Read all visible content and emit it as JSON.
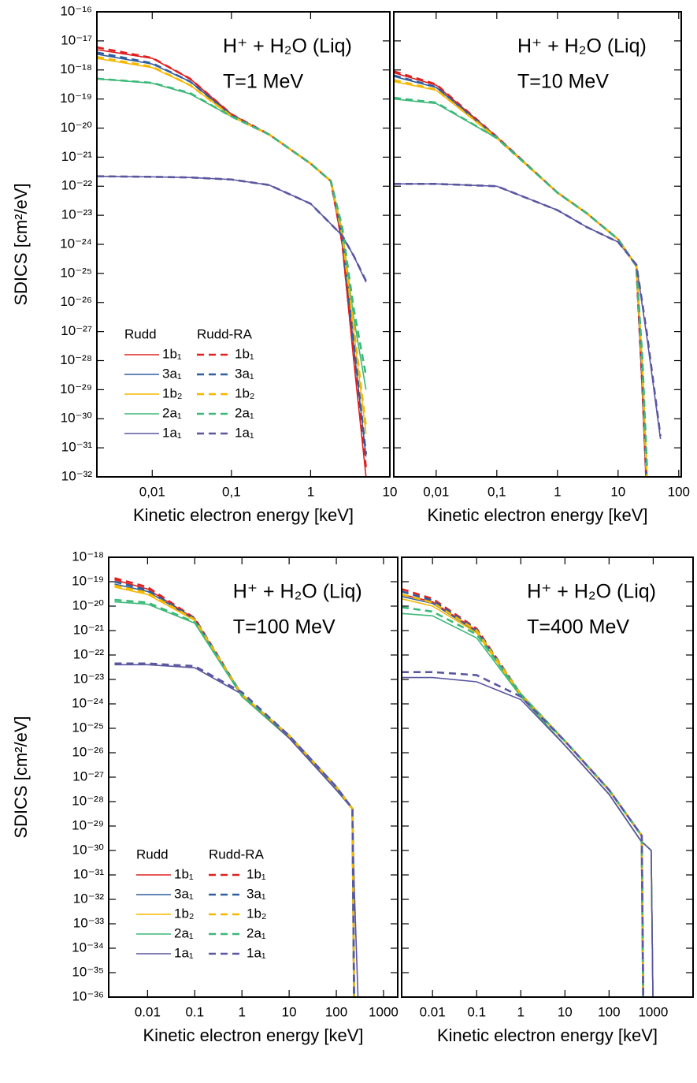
{
  "chart_data": [
    {
      "type": "line",
      "annotations": [
        "H⁺ + H₂O (Liq)",
        "T=1 MeV"
      ],
      "xlabel": "Kinetic electron energy [keV]",
      "ylabel": "SDICS [cm²/eV]",
      "xscale": "log",
      "yscale": "log",
      "xlim": [
        0.002,
        10
      ],
      "ylim": [
        1e-32,
        1e-16
      ],
      "xticks": [
        {
          "value": 0.01,
          "label": "0,01"
        },
        {
          "value": 0.1,
          "label": "0,1"
        },
        1,
        10
      ],
      "yticks": [
        {
          "value": 1e-16,
          "label": "10⁻¹⁶"
        },
        {
          "value": 1e-17,
          "label": "10⁻¹⁷"
        },
        {
          "value": 1e-18,
          "label": "10⁻¹⁸"
        },
        {
          "value": 1e-19,
          "label": "10⁻¹⁹"
        },
        {
          "value": 1e-20,
          "label": "10⁻²⁰"
        },
        {
          "value": 1e-21,
          "label": "10⁻²¹"
        },
        {
          "value": 1e-22,
          "label": "10⁻²²"
        },
        {
          "value": 1e-23,
          "label": "10⁻²³"
        },
        {
          "value": 1e-24,
          "label": "10⁻²⁴"
        },
        {
          "value": 1e-25,
          "label": "10⁻²⁵"
        },
        {
          "value": 1e-26,
          "label": "10⁻²⁶"
        },
        {
          "value": 1e-27,
          "label": "10⁻²⁷"
        },
        {
          "value": 1e-28,
          "label": "10⁻²⁸"
        },
        {
          "value": 1e-29,
          "label": "10⁻²⁹"
        },
        {
          "value": 1e-30,
          "label": "10⁻³⁰"
        },
        {
          "value": 1e-31,
          "label": "10⁻³¹"
        },
        {
          "value": 1e-32,
          "label": "10⁻³²"
        }
      ],
      "legend": "lower left",
      "legend_titles": [
        "Rudd",
        "Rudd-RA"
      ],
      "x": [
        0.002,
        0.01,
        0.03,
        0.1,
        0.3,
        1,
        1.8,
        2.5,
        3.5,
        5
      ],
      "series": [
        {
          "name": "1b₁",
          "style": "solid",
          "color": "#e02020",
          "values": [
            5e-18,
            2.5e-18,
            5e-19,
            3e-20,
            6e-21,
            6e-22,
            1.5e-22,
            1e-24,
            1e-28,
            1e-32
          ]
        },
        {
          "name": "3a₁",
          "style": "solid",
          "color": "#2f5f9e",
          "values": [
            3.5e-18,
            1.6e-18,
            4e-19,
            2.8e-20,
            6e-21,
            6e-22,
            1.5e-22,
            1.5e-24,
            3e-28,
            5e-32
          ]
        },
        {
          "name": "1b₂",
          "style": "solid",
          "color": "#f5b800",
          "values": [
            2.5e-18,
            1.2e-18,
            3e-19,
            2.6e-20,
            6e-21,
            6e-22,
            1.5e-22,
            2e-24,
            1e-27,
            3e-31
          ]
        },
        {
          "name": "2a₁",
          "style": "solid",
          "color": "#3cb878",
          "values": [
            5e-19,
            3.5e-19,
            1.5e-19,
            2.5e-20,
            6e-21,
            6e-22,
            1.5e-22,
            3e-24,
            3e-27,
            1e-29
          ]
        },
        {
          "name": "1a₁",
          "style": "solid",
          "color": "#5a56a0",
          "values": [
            2.2e-22,
            2.1e-22,
            2e-22,
            1.7e-22,
            1.1e-22,
            2.5e-23,
            5e-24,
            2e-24,
            4e-25,
            5e-26
          ]
        },
        {
          "name": "1b₁",
          "style": "dashed",
          "color": "#e02020",
          "values": [
            6e-18,
            2.6e-18,
            5e-19,
            3e-20,
            6e-21,
            6e-22,
            1.5e-22,
            1.2e-24,
            1.5e-28,
            2e-32
          ]
        },
        {
          "name": "3a₁",
          "style": "dashed",
          "color": "#2f5f9e",
          "values": [
            4e-18,
            1.7e-18,
            4e-19,
            2.8e-20,
            6e-21,
            6e-22,
            1.5e-22,
            1.7e-24,
            4e-28,
            6e-32
          ]
        },
        {
          "name": "1b₂",
          "style": "dashed",
          "color": "#f5b800",
          "values": [
            2.8e-18,
            1.3e-18,
            3e-19,
            2.6e-20,
            6e-21,
            6e-22,
            1.5e-22,
            2.2e-24,
            1.5e-27,
            5e-31
          ]
        },
        {
          "name": "2a₁",
          "style": "dashed",
          "color": "#3cb878",
          "values": [
            5e-19,
            3.6e-19,
            1.6e-19,
            2.5e-20,
            6e-21,
            6e-22,
            1.5e-22,
            4e-24,
            6e-27,
            3e-29
          ]
        },
        {
          "name": "1a₁",
          "style": "dashed",
          "color": "#5a56a0",
          "values": [
            2.2e-22,
            2.1e-22,
            2e-22,
            1.7e-22,
            1.1e-22,
            2.5e-23,
            5e-24,
            2e-24,
            4e-25,
            5.5e-26
          ]
        }
      ]
    },
    {
      "type": "line",
      "annotations": [
        "H⁺ + H₂O (Liq)",
        "T=10 MeV"
      ],
      "xlabel": "Kinetic electron energy [keV]",
      "xscale": "log",
      "yscale": "log",
      "xlim": [
        0.002,
        110
      ],
      "ylim": [
        1e-32,
        1e-16
      ],
      "xticks": [
        {
          "value": 0.01,
          "label": "0,01"
        },
        {
          "value": 0.1,
          "label": "0,1"
        },
        1,
        10,
        100
      ],
      "yticks": [
        1e-16,
        1e-17,
        1e-18,
        1e-19,
        1e-20,
        1e-21,
        1e-22,
        1e-23,
        1e-24,
        1e-25,
        1e-26,
        1e-27,
        1e-28,
        1e-29,
        1e-30,
        1e-31,
        1e-32
      ],
      "ytick_labels": false,
      "x": [
        0.002,
        0.01,
        0.1,
        1,
        3,
        10,
        20,
        25,
        30,
        50
      ],
      "series": [
        {
          "style": "solid",
          "color": "#e02020",
          "values": [
            8e-19,
            3e-19,
            5e-21,
            6e-23,
            1.2e-23,
            1.5e-24,
            1.8e-25,
            1e-29,
            1e-33,
            null
          ]
        },
        {
          "style": "solid",
          "color": "#2f5f9e",
          "values": [
            6e-19,
            2.5e-19,
            4.8e-21,
            6e-23,
            1.2e-23,
            1.5e-24,
            1.8e-25,
            2e-29,
            2e-33,
            null
          ]
        },
        {
          "style": "solid",
          "color": "#f5b800",
          "values": [
            4e-19,
            2e-19,
            4.6e-21,
            6e-23,
            1.2e-23,
            1.5e-24,
            1.8e-25,
            5e-29,
            5e-33,
            null
          ]
        },
        {
          "style": "solid",
          "color": "#3cb878",
          "values": [
            1e-19,
            7e-20,
            4.5e-21,
            6e-23,
            1.2e-23,
            1.5e-24,
            1.8e-25,
            1e-28,
            1e-32,
            null
          ]
        },
        {
          "style": "solid",
          "color": "#5a56a0",
          "values": [
            1.2e-22,
            1.2e-22,
            1e-22,
            1.5e-23,
            4e-24,
            1.2e-24,
            2e-25,
            8e-27,
            6e-28,
            2e-31
          ]
        },
        {
          "style": "dashed",
          "color": "#e02020",
          "values": [
            9e-19,
            3.2e-19,
            5e-21,
            6e-23,
            1.2e-23,
            1.5e-24,
            1.8e-25,
            1.5e-29,
            2e-33,
            null
          ]
        },
        {
          "style": "dashed",
          "color": "#2f5f9e",
          "values": [
            6.5e-19,
            2.6e-19,
            4.8e-21,
            6e-23,
            1.2e-23,
            1.5e-24,
            1.8e-25,
            3e-29,
            3e-33,
            null
          ]
        },
        {
          "style": "dashed",
          "color": "#f5b800",
          "values": [
            4.5e-19,
            2.1e-19,
            4.6e-21,
            6e-23,
            1.2e-23,
            1.5e-24,
            1.8e-25,
            6e-29,
            6e-33,
            null
          ]
        },
        {
          "style": "dashed",
          "color": "#3cb878",
          "values": [
            1.1e-19,
            7.5e-20,
            4.5e-21,
            6e-23,
            1.2e-23,
            1.5e-24,
            1.8e-25,
            1.5e-28,
            2e-32,
            null
          ]
        },
        {
          "style": "dashed",
          "color": "#5a56a0",
          "values": [
            1.2e-22,
            1.2e-22,
            1e-22,
            1.5e-23,
            4e-24,
            1.2e-24,
            2e-25,
            1e-26,
            8e-28,
            2.5e-31
          ]
        }
      ]
    },
    {
      "type": "line",
      "annotations": [
        "H⁺ + H₂O (Liq)",
        "T=100 MeV"
      ],
      "xlabel": "Kinetic electron energy [keV]",
      "ylabel": "SDICS [cm²/eV]",
      "xscale": "log",
      "yscale": "log",
      "xlim": [
        0.0015,
        2000
      ],
      "ylim": [
        1e-36,
        1e-18
      ],
      "xticks": [
        0.01,
        0.1,
        1,
        10,
        100,
        1000
      ],
      "yticks": [
        {
          "value": 1e-18,
          "label": "10⁻¹⁸"
        },
        {
          "value": 1e-19,
          "label": "10⁻¹⁹"
        },
        {
          "value": 1e-20,
          "label": "10⁻²⁰"
        },
        {
          "value": 1e-21,
          "label": "10⁻²¹"
        },
        {
          "value": 1e-22,
          "label": "10⁻²²"
        },
        {
          "value": 1e-23,
          "label": "10⁻²³"
        },
        {
          "value": 1e-24,
          "label": "10⁻²⁴"
        },
        {
          "value": 1e-25,
          "label": "10⁻²⁵"
        },
        {
          "value": 1e-26,
          "label": "10⁻²⁶"
        },
        {
          "value": 1e-27,
          "label": "10⁻²⁷"
        },
        {
          "value": 1e-28,
          "label": "10⁻²⁸"
        },
        {
          "value": 1e-29,
          "label": "10⁻²⁹"
        },
        {
          "value": 1e-30,
          "label": "10⁻³⁰"
        },
        {
          "value": 1e-31,
          "label": "10⁻³¹"
        },
        {
          "value": 1e-32,
          "label": "10⁻³²"
        },
        {
          "value": 1e-33,
          "label": "10⁻³³"
        },
        {
          "value": 1e-34,
          "label": "10⁻³⁴"
        },
        {
          "value": 1e-35,
          "label": "10⁻³⁵"
        },
        {
          "value": 1e-36,
          "label": "10⁻³⁶"
        }
      ],
      "legend": "lower left",
      "legend_titles": [
        "Rudd",
        "Rudd-RA"
      ],
      "x": [
        0.002,
        0.01,
        0.1,
        1,
        10,
        100,
        220,
        240,
        300
      ],
      "series": [
        {
          "name": "1b₁",
          "style": "solid",
          "color": "#e02020",
          "values": [
            1.2e-19,
            5e-20,
            3e-21,
            2e-24,
            4e-26,
            3e-28,
            5e-29,
            1e-37,
            null
          ]
        },
        {
          "name": "3a₁",
          "style": "solid",
          "color": "#2f5f9e",
          "values": [
            8e-20,
            4e-20,
            2.8e-21,
            2e-24,
            4e-26,
            3e-28,
            5e-29,
            1e-37,
            null
          ]
        },
        {
          "name": "1b₂",
          "style": "solid",
          "color": "#f5b800",
          "values": [
            6e-20,
            3e-20,
            2.6e-21,
            2e-24,
            4e-26,
            3e-28,
            5e-29,
            1e-37,
            null
          ]
        },
        {
          "name": "2a₁",
          "style": "solid",
          "color": "#3cb878",
          "values": [
            1.5e-20,
            1.2e-20,
            2e-21,
            2e-24,
            4e-26,
            3e-28,
            5e-29,
            1e-37,
            null
          ]
        },
        {
          "name": "1a₁",
          "style": "solid",
          "color": "#5a56a0",
          "values": [
            4e-23,
            4e-23,
            3e-23,
            2.5e-24,
            4e-26,
            3e-28,
            5e-29,
            3e-32,
            1e-37
          ]
        },
        {
          "name": "1b₁",
          "style": "dashed",
          "color": "#e02020",
          "values": [
            1.4e-19,
            6e-20,
            3.2e-21,
            2.3e-24,
            5e-26,
            4e-28,
            5e-29,
            1e-37,
            null
          ]
        },
        {
          "name": "3a₁",
          "style": "dashed",
          "color": "#2f5f9e",
          "values": [
            1e-19,
            4.5e-20,
            3e-21,
            2.3e-24,
            5e-26,
            4e-28,
            5e-29,
            1e-37,
            null
          ]
        },
        {
          "name": "1b₂",
          "style": "dashed",
          "color": "#f5b800",
          "values": [
            7e-20,
            3.5e-20,
            2.8e-21,
            2.3e-24,
            5e-26,
            4e-28,
            5e-29,
            1e-37,
            null
          ]
        },
        {
          "name": "2a₁",
          "style": "dashed",
          "color": "#3cb878",
          "values": [
            1.8e-20,
            1.4e-20,
            2.2e-21,
            2.3e-24,
            5e-26,
            4e-28,
            5e-29,
            1e-37,
            null
          ]
        },
        {
          "name": "1a₁",
          "style": "dashed",
          "color": "#5a56a0",
          "values": [
            4.5e-23,
            4.5e-23,
            3.5e-23,
            3e-24,
            5e-26,
            4e-28,
            5e-29,
            1e-37,
            null
          ]
        }
      ]
    },
    {
      "type": "line",
      "annotations": [
        "H⁺ + H₂O (Liq)",
        "T=400 MeV"
      ],
      "xlabel": "Kinetic electron energy [keV]",
      "xscale": "log",
      "yscale": "log",
      "xlim": [
        0.002,
        8000
      ],
      "ylim": [
        1e-36,
        1e-18
      ],
      "xticks": [
        0.01,
        0.1,
        1,
        10,
        100,
        1000
      ],
      "yticks": [
        1e-18,
        1e-19,
        1e-20,
        1e-21,
        1e-22,
        1e-23,
        1e-24,
        1e-25,
        1e-26,
        1e-27,
        1e-28,
        1e-29,
        1e-30,
        1e-31,
        1e-32,
        1e-33,
        1e-34,
        1e-35,
        1e-36
      ],
      "ytick_labels": false,
      "x": [
        0.002,
        0.01,
        0.1,
        1,
        10,
        100,
        550,
        600,
        900,
        1000
      ],
      "series": [
        {
          "style": "solid",
          "color": "#e02020",
          "values": [
            3e-20,
            1.5e-20,
            1e-21,
            2e-24,
            2e-26,
            2e-28,
            2.2e-30,
            2e-30,
            1e-30,
            1e-37
          ]
        },
        {
          "style": "solid",
          "color": "#2f5f9e",
          "values": [
            2.5e-20,
            1.3e-20,
            9e-22,
            2e-24,
            2e-26,
            2e-28,
            2.2e-30,
            2e-30,
            1e-30,
            1e-37
          ]
        },
        {
          "style": "solid",
          "color": "#f5b800",
          "values": [
            2e-20,
            1e-20,
            8e-22,
            2e-24,
            2e-26,
            2e-28,
            2.2e-30,
            2e-30,
            1e-30,
            1e-37
          ]
        },
        {
          "style": "solid",
          "color": "#3cb878",
          "values": [
            5e-21,
            4e-21,
            5e-22,
            2e-24,
            2e-26,
            2e-28,
            2.2e-30,
            2e-30,
            1e-30,
            1e-37
          ]
        },
        {
          "style": "solid",
          "color": "#5a56a0",
          "values": [
            1.2e-23,
            1.2e-23,
            8e-24,
            1.5e-24,
            2e-26,
            2e-28,
            2.2e-30,
            2e-30,
            1e-30,
            1e-37
          ]
        },
        {
          "style": "dashed",
          "color": "#e02020",
          "values": [
            5e-20,
            2e-20,
            1.2e-21,
            2.5e-24,
            3e-26,
            3e-28,
            4e-30,
            1e-37,
            null,
            null
          ]
        },
        {
          "style": "dashed",
          "color": "#2f5f9e",
          "values": [
            4e-20,
            1.7e-20,
            1.1e-21,
            2.5e-24,
            3e-26,
            3e-28,
            4e-30,
            1e-37,
            null,
            null
          ]
        },
        {
          "style": "dashed",
          "color": "#f5b800",
          "values": [
            3e-20,
            1.4e-20,
            1e-21,
            2.5e-24,
            3e-26,
            3e-28,
            4e-30,
            1e-37,
            null,
            null
          ]
        },
        {
          "style": "dashed",
          "color": "#3cb878",
          "values": [
            9e-21,
            6e-21,
            7e-22,
            2.5e-24,
            3e-26,
            3e-28,
            4e-30,
            1e-37,
            null,
            null
          ]
        },
        {
          "style": "dashed",
          "color": "#5a56a0",
          "values": [
            2e-23,
            2e-23,
            1.5e-23,
            2e-24,
            3e-26,
            3e-28,
            4e-30,
            1e-37,
            null,
            null
          ]
        }
      ]
    }
  ]
}
